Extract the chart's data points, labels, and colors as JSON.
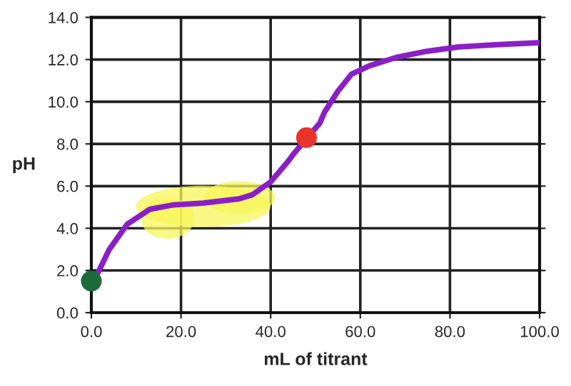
{
  "chart_data": {
    "type": "line",
    "xlabel": "mL of titrant",
    "ylabel": "pH",
    "series": [
      {
        "color": "#8b1fc6",
        "x": [
          1.5,
          4,
          8,
          13,
          18,
          25,
          33,
          36,
          40,
          44,
          45,
          51,
          52,
          55,
          58,
          62,
          68,
          75,
          82,
          90,
          100
        ],
        "values": [
          1.9,
          3.0,
          4.2,
          4.9,
          5.1,
          5.2,
          5.4,
          5.6,
          6.2,
          7.2,
          7.5,
          9.0,
          9.5,
          10.5,
          11.3,
          11.7,
          12.1,
          12.4,
          12.6,
          12.7,
          12.8
        ]
      },
      {
        "type": "scatter",
        "color": "#1d6b3b",
        "x": [
          0
        ],
        "values": [
          1.5
        ]
      },
      {
        "type": "scatter",
        "color": "#e8352b",
        "x": [
          48
        ],
        "values": [
          8.3
        ]
      }
    ],
    "xlim": [
      0,
      100
    ],
    "ylim": [
      0,
      14
    ],
    "xticks": [
      {
        "value": 0,
        "label": "0.0"
      },
      {
        "value": 20,
        "label": "20.0"
      },
      {
        "value": 40,
        "label": "40.0"
      },
      {
        "value": 60,
        "label": "60.0"
      },
      {
        "value": 80,
        "label": "80.0"
      },
      {
        "value": 100,
        "label": "100.0"
      }
    ],
    "yticks": [
      {
        "value": 0,
        "label": "0.0"
      },
      {
        "value": 2,
        "label": "2.0"
      },
      {
        "value": 4,
        "label": "4.0"
      },
      {
        "value": 6,
        "label": "6.0"
      },
      {
        "value": 8,
        "label": "8.0"
      },
      {
        "value": 10,
        "label": "10.0"
      },
      {
        "value": 12,
        "label": "12.0"
      },
      {
        "value": 14,
        "label": "14.0"
      }
    ],
    "grid": true
  }
}
